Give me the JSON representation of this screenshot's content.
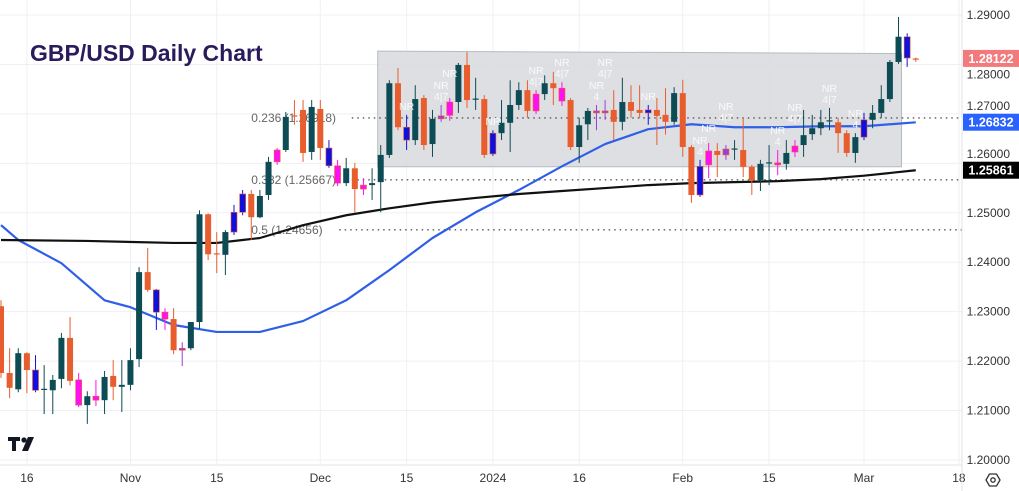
{
  "chart_data": {
    "type": "candlestick",
    "title": "GBP/USD Daily Chart",
    "ylim": [
      1.2,
      1.29
    ],
    "grid": true,
    "y_ticks": [
      "1.20000",
      "1.21000",
      "1.22000",
      "1.23000",
      "1.24000",
      "1.25000",
      "1.26000",
      "1.27000",
      "1.28000",
      "1.29000"
    ],
    "x_ticks": [
      {
        "label": "16",
        "date": "2023-10-16"
      },
      {
        "label": "Nov",
        "date": "2023-11-01"
      },
      {
        "label": "15",
        "date": "2023-11-15"
      },
      {
        "label": "Dec",
        "date": "2023-12-01"
      },
      {
        "label": "15",
        "date": "2023-12-15"
      },
      {
        "label": "2024",
        "date": "2024-01-02"
      },
      {
        "label": "16",
        "date": "2024-01-16"
      },
      {
        "label": "Feb",
        "date": "2024-02-01"
      },
      {
        "label": "15",
        "date": "2024-02-15"
      },
      {
        "label": "Mar",
        "date": "2024-03-01"
      },
      {
        "label": "18",
        "date": "2024-03-18"
      }
    ],
    "candle_colors": {
      "up": "#0d4b55",
      "down": "#e85d2e",
      "blue": "#1010dc",
      "magenta": "#ff10f0",
      "purple": "#9a3fd6"
    },
    "candles": [
      [
        "2023-10-11",
        1.2311,
        1.2323,
        1.2166,
        1.2176,
        "down"
      ],
      [
        "2023-10-12",
        1.2176,
        1.2226,
        1.2125,
        1.2146,
        "down"
      ],
      [
        "2023-10-13",
        1.2143,
        1.2226,
        1.2137,
        1.2216,
        "up"
      ],
      [
        "2023-10-16",
        1.2216,
        1.2218,
        1.2135,
        1.2182,
        "down"
      ],
      [
        "2023-10-17",
        1.2182,
        1.2212,
        1.2137,
        1.2141,
        "blue"
      ],
      [
        "2023-10-18",
        1.2143,
        1.2192,
        1.2093,
        1.2144,
        "up"
      ],
      [
        "2023-10-19",
        1.2141,
        1.2172,
        1.2093,
        1.2162,
        "up"
      ],
      [
        "2023-10-20",
        1.2164,
        1.2257,
        1.2145,
        1.2247,
        "up"
      ],
      [
        "2023-10-23",
        1.2247,
        1.2289,
        1.2151,
        1.216,
        "down"
      ],
      [
        "2023-10-24",
        1.2162,
        1.2176,
        1.2107,
        1.2111,
        "magenta"
      ],
      [
        "2023-10-25",
        1.2111,
        1.2139,
        1.2073,
        1.2129,
        "up"
      ],
      [
        "2023-10-26",
        1.2129,
        1.2162,
        1.2109,
        1.2121,
        "magenta"
      ],
      [
        "2023-10-27",
        1.2121,
        1.218,
        1.2093,
        1.2168,
        "up"
      ],
      [
        "2023-10-30",
        1.217,
        1.2202,
        1.2121,
        1.2148,
        "down"
      ],
      [
        "2023-10-31",
        1.2148,
        1.2202,
        1.2097,
        1.2152,
        "up"
      ],
      [
        "2023-11-01",
        1.2152,
        1.2226,
        1.2141,
        1.2202,
        "up"
      ],
      [
        "2023-11-02",
        1.2204,
        1.239,
        1.2188,
        1.238,
        "up"
      ],
      [
        "2023-11-03",
        1.238,
        1.2429,
        1.234,
        1.2344,
        "down"
      ],
      [
        "2023-11-06",
        1.2344,
        1.2346,
        1.2263,
        1.2299,
        "blue"
      ],
      [
        "2023-11-07",
        1.2299,
        1.2307,
        1.2263,
        1.2285,
        "magenta"
      ],
      [
        "2023-11-08",
        1.2285,
        1.2307,
        1.2214,
        1.2222,
        "down"
      ],
      [
        "2023-11-09",
        1.2226,
        1.2238,
        1.219,
        1.2222,
        "purple"
      ],
      [
        "2023-11-10",
        1.2226,
        1.2279,
        1.2222,
        1.2279,
        "up"
      ],
      [
        "2023-11-13",
        1.2279,
        1.2505,
        1.2265,
        1.2497,
        "up"
      ],
      [
        "2023-11-14",
        1.2497,
        1.2499,
        1.2404,
        1.2416,
        "down"
      ],
      [
        "2023-11-15",
        1.2418,
        1.2461,
        1.2378,
        1.2417,
        "down"
      ],
      [
        "2023-11-16",
        1.2415,
        1.2465,
        1.2374,
        1.2461,
        "up"
      ],
      [
        "2023-11-17",
        1.2461,
        1.2516,
        1.2455,
        1.2501,
        "blue"
      ],
      [
        "2023-11-20",
        1.2501,
        1.2546,
        1.2495,
        1.2538,
        "blue"
      ],
      [
        "2023-11-21",
        1.2538,
        1.2546,
        1.2445,
        1.2491,
        "down"
      ],
      [
        "2023-11-22",
        1.2491,
        1.2546,
        1.2489,
        1.2534,
        "up"
      ],
      [
        "2023-11-23",
        1.2536,
        1.2613,
        1.2526,
        1.2603,
        "up"
      ],
      [
        "2023-11-24",
        1.2603,
        1.2631,
        1.2597,
        1.2627,
        "magenta"
      ],
      [
        "2023-11-27",
        1.2627,
        1.2704,
        1.2623,
        1.2694,
        "up"
      ],
      [
        "2023-11-28",
        1.2695,
        1.2728,
        1.2678,
        1.2697,
        "down"
      ],
      [
        "2023-11-29",
        1.2708,
        1.2728,
        1.2603,
        1.2621,
        "down"
      ],
      [
        "2023-11-30",
        1.2623,
        1.2728,
        1.2607,
        1.2714,
        "up"
      ],
      [
        "2023-12-01",
        1.271,
        1.2728,
        1.2607,
        1.2631,
        "down"
      ],
      [
        "2023-12-04",
        1.2631,
        1.2647,
        1.2591,
        1.2595,
        "blue"
      ],
      [
        "2023-12-05",
        1.2595,
        1.2607,
        1.2554,
        1.256,
        "magenta"
      ],
      [
        "2023-12-06",
        1.256,
        1.2611,
        1.2554,
        1.259,
        "up"
      ],
      [
        "2023-12-07",
        1.259,
        1.2601,
        1.2501,
        1.2548,
        "down"
      ],
      [
        "2023-12-08",
        1.2556,
        1.257,
        1.2536,
        1.2548,
        "magenta"
      ],
      [
        "2023-12-11",
        1.2556,
        1.259,
        1.2526,
        1.256,
        "up"
      ],
      [
        "2023-12-12",
        1.2562,
        1.2637,
        1.2501,
        1.2617,
        "up"
      ],
      [
        "2023-12-13",
        1.2617,
        1.2768,
        1.2611,
        1.2762,
        "up"
      ],
      [
        "2023-12-14",
        1.2762,
        1.2793,
        1.2667,
        1.2673,
        "down"
      ],
      [
        "2023-12-15",
        1.2673,
        1.2698,
        1.2627,
        1.2647,
        "blue"
      ],
      [
        "2023-12-18",
        1.2647,
        1.2758,
        1.2637,
        1.273,
        "up"
      ],
      [
        "2023-12-19",
        1.2732,
        1.2738,
        1.2627,
        1.2637,
        "down"
      ],
      [
        "2023-12-20",
        1.2639,
        1.2708,
        1.2613,
        1.269,
        "up"
      ],
      [
        "2023-12-21",
        1.269,
        1.2718,
        1.2684,
        1.2696,
        "purple"
      ],
      [
        "2023-12-22",
        1.2697,
        1.2732,
        1.2686,
        1.2724,
        "magenta"
      ],
      [
        "2023-12-26",
        1.2724,
        1.2803,
        1.2702,
        1.2799,
        "up"
      ],
      [
        "2023-12-27",
        1.2799,
        1.2825,
        1.2712,
        1.2728,
        "down"
      ],
      [
        "2023-12-28",
        1.273,
        1.2773,
        1.2708,
        1.2731,
        "up"
      ],
      [
        "2023-12-29",
        1.273,
        1.2738,
        1.2611,
        1.2617,
        "down"
      ],
      [
        "2024-01-02",
        1.2619,
        1.2667,
        1.2615,
        1.2661,
        "blue"
      ],
      [
        "2024-01-03",
        1.2661,
        1.2728,
        1.2647,
        1.2682,
        "up"
      ],
      [
        "2024-01-04",
        1.2682,
        1.2768,
        1.2623,
        1.2718,
        "up"
      ],
      [
        "2024-01-05",
        1.2718,
        1.2764,
        1.2708,
        1.2748,
        "up"
      ],
      [
        "2024-01-08",
        1.2748,
        1.2768,
        1.2692,
        1.2706,
        "down"
      ],
      [
        "2024-01-09",
        1.2706,
        1.2748,
        1.27,
        1.274,
        "magenta"
      ],
      [
        "2024-01-10",
        1.274,
        1.2778,
        1.2728,
        1.2762,
        "up"
      ],
      [
        "2024-01-11",
        1.2762,
        1.2785,
        1.2718,
        1.2752,
        "down"
      ],
      [
        "2024-01-12",
        1.2752,
        1.2764,
        1.2716,
        1.2726,
        "magenta"
      ],
      [
        "2024-01-15",
        1.2728,
        1.2732,
        1.2627,
        1.2633,
        "down"
      ],
      [
        "2024-01-16",
        1.2633,
        1.2692,
        1.2601,
        1.2677,
        "up"
      ],
      [
        "2024-01-17",
        1.2679,
        1.2712,
        1.2647,
        1.2706,
        "up"
      ],
      [
        "2024-01-18",
        1.2706,
        1.2718,
        1.2667,
        1.2702,
        "purple"
      ],
      [
        "2024-01-19",
        1.2702,
        1.2728,
        1.2688,
        1.2706,
        "purple"
      ],
      [
        "2024-01-22",
        1.2708,
        1.2748,
        1.2647,
        1.2684,
        "down"
      ],
      [
        "2024-01-23",
        1.2684,
        1.2773,
        1.2667,
        1.2724,
        "up"
      ],
      [
        "2024-01-24",
        1.2724,
        1.2758,
        1.2692,
        1.2706,
        "down"
      ],
      [
        "2024-01-25",
        1.2708,
        1.2758,
        1.2692,
        1.2702,
        "down"
      ],
      [
        "2024-01-26",
        1.2708,
        1.2718,
        1.2678,
        1.2702,
        "blue"
      ],
      [
        "2024-01-29",
        1.2708,
        1.2732,
        1.2637,
        1.2696,
        "down"
      ],
      [
        "2024-01-30",
        1.2698,
        1.2752,
        1.2658,
        1.2684,
        "down"
      ],
      [
        "2024-01-31",
        1.2684,
        1.2754,
        1.2678,
        1.2742,
        "up"
      ],
      [
        "2024-02-01",
        1.2742,
        1.2769,
        1.2613,
        1.2633,
        "down"
      ],
      [
        "2024-02-02",
        1.2633,
        1.2637,
        1.252,
        1.2536,
        "down"
      ],
      [
        "2024-02-05",
        1.2536,
        1.2607,
        1.2532,
        1.2594,
        "blue"
      ],
      [
        "2024-02-06",
        1.2597,
        1.2641,
        1.257,
        1.2625,
        "magenta"
      ],
      [
        "2024-02-07",
        1.2625,
        1.2641,
        1.2572,
        1.2617,
        "down"
      ],
      [
        "2024-02-08",
        1.2617,
        1.2637,
        1.2607,
        1.2629,
        "purple"
      ],
      [
        "2024-02-09",
        1.2629,
        1.2647,
        1.2607,
        1.263,
        "up"
      ],
      [
        "2024-02-12",
        1.2627,
        1.2692,
        1.2572,
        1.2593,
        "down"
      ],
      [
        "2024-02-13",
        1.2593,
        1.2597,
        1.2536,
        1.2566,
        "down"
      ],
      [
        "2024-02-14",
        1.2566,
        1.2607,
        1.2544,
        1.2599,
        "up"
      ],
      [
        "2024-02-15",
        1.2601,
        1.2637,
        1.2556,
        1.2602,
        "up"
      ],
      [
        "2024-02-16",
        1.2597,
        1.2627,
        1.2576,
        1.2601,
        "magenta"
      ],
      [
        "2024-02-19",
        1.2599,
        1.2647,
        1.2587,
        1.2621,
        "up"
      ],
      [
        "2024-02-20",
        1.2623,
        1.2647,
        1.2613,
        1.2635,
        "magenta"
      ],
      [
        "2024-02-21",
        1.2637,
        1.2708,
        1.2613,
        1.2657,
        "up"
      ],
      [
        "2024-02-22",
        1.2659,
        1.2698,
        1.2647,
        1.2671,
        "up"
      ],
      [
        "2024-02-23",
        1.2671,
        1.2708,
        1.2657,
        1.2683,
        "up"
      ],
      [
        "2024-02-26",
        1.2685,
        1.2712,
        1.2667,
        1.2687,
        "up"
      ],
      [
        "2024-02-27",
        1.2683,
        1.2692,
        1.2621,
        1.2661,
        "down"
      ],
      [
        "2024-02-28",
        1.2661,
        1.2667,
        1.2613,
        1.2621,
        "down"
      ],
      [
        "2024-02-29",
        1.2621,
        1.2661,
        1.2601,
        1.2653,
        "up"
      ],
      [
        "2024-03-01",
        1.2653,
        1.2702,
        1.2647,
        1.2688,
        "blue"
      ],
      [
        "2024-03-04",
        1.2688,
        1.2718,
        1.2671,
        1.2702,
        "up"
      ],
      [
        "2024-03-05",
        1.2702,
        1.2758,
        1.2692,
        1.273,
        "up"
      ],
      [
        "2024-03-06",
        1.273,
        1.2809,
        1.2724,
        1.2805,
        "up"
      ],
      [
        "2024-03-07",
        1.2805,
        1.2896,
        1.2801,
        1.2856,
        "up"
      ],
      [
        "2024-03-08",
        1.2856,
        1.2863,
        1.2795,
        1.2813,
        "blue"
      ],
      [
        "2024-03-11",
        1.2812,
        1.2814,
        1.2805,
        1.2812,
        "down"
      ]
    ],
    "moving_averages": [
      {
        "color": "#2f5fe6",
        "points": [
          [
            "2023-10-11",
            1.2475
          ],
          [
            "2023-10-13",
            1.2445
          ],
          [
            "2023-10-20",
            1.2398
          ],
          [
            "2023-10-27",
            1.2323
          ],
          [
            "2023-11-01",
            1.2309
          ],
          [
            "2023-11-08",
            1.2273
          ],
          [
            "2023-11-15",
            1.2259
          ],
          [
            "2023-11-22",
            1.2259
          ],
          [
            "2023-11-29",
            1.2281
          ],
          [
            "2023-12-06",
            1.2323
          ],
          [
            "2023-12-13",
            1.2384
          ],
          [
            "2023-12-20",
            1.2449
          ],
          [
            "2023-12-28",
            1.2501
          ],
          [
            "2024-01-05",
            1.2546
          ],
          [
            "2024-01-12",
            1.2594
          ],
          [
            "2024-01-19",
            1.2639
          ],
          [
            "2024-01-26",
            1.2669
          ],
          [
            "2024-02-02",
            1.2679
          ],
          [
            "2024-02-09",
            1.2673
          ],
          [
            "2024-02-16",
            1.2673
          ],
          [
            "2024-02-23",
            1.2675
          ],
          [
            "2024-03-01",
            1.2675
          ],
          [
            "2024-03-11",
            1.2683
          ]
        ]
      },
      {
        "color": "#111111",
        "points": [
          [
            "2023-10-11",
            1.2445
          ],
          [
            "2023-10-25",
            1.2443
          ],
          [
            "2023-11-08",
            1.2439
          ],
          [
            "2023-11-15",
            1.2439
          ],
          [
            "2023-11-20",
            1.2445
          ],
          [
            "2023-11-22",
            1.2449
          ],
          [
            "2023-11-29",
            1.2475
          ],
          [
            "2023-12-06",
            1.2495
          ],
          [
            "2023-12-13",
            1.2509
          ],
          [
            "2023-12-20",
            1.2521
          ],
          [
            "2023-12-28",
            1.253
          ],
          [
            "2024-01-05",
            1.2538
          ],
          [
            "2024-01-12",
            1.2544
          ],
          [
            "2024-01-19",
            1.255
          ],
          [
            "2024-01-26",
            1.2556
          ],
          [
            "2024-02-02",
            1.256
          ],
          [
            "2024-02-09",
            1.2562
          ],
          [
            "2024-02-16",
            1.2564
          ],
          [
            "2024-02-23",
            1.2568
          ],
          [
            "2024-03-01",
            1.2575
          ],
          [
            "2024-03-11",
            1.2586
          ]
        ]
      }
    ],
    "price_labels": [
      {
        "text": "1.28122",
        "value": 1.28122,
        "color": "#f27a7d"
      },
      {
        "text": "1.26832",
        "value": 1.26832,
        "color": "#2962ff"
      },
      {
        "text": "1.25861",
        "value": 1.25861,
        "color": "#000000"
      }
    ],
    "fib_levels": [
      {
        "label": "0.236 (1.26918)",
        "value": 1.26918
      },
      {
        "label": "0.382 (1.25667)",
        "value": 1.25667
      },
      {
        "label": "0.5 (1.24656)",
        "value": 1.24656
      }
    ],
    "range_box": {
      "start": "2023-12-12",
      "end": "2024-03-07",
      "top_start": 1.2827,
      "top_end": 1.2822,
      "bottom": 1.2593,
      "color": "#d8d9de"
    },
    "annotations": [
      {
        "date": "2023-12-15",
        "lines": [
          "NR"
        ]
      },
      {
        "date": "2023-12-21",
        "lines": [
          "NR",
          "4|7"
        ]
      },
      {
        "date": "2023-12-22",
        "lines": [
          "NR"
        ]
      },
      {
        "date": "2024-01-02",
        "lines": [
          "NR"
        ]
      },
      {
        "date": "2024-01-09",
        "lines": [
          "NR",
          "4|7"
        ]
      },
      {
        "date": "2024-01-12",
        "lines": [
          "NR",
          "4|7"
        ]
      },
      {
        "date": "2024-01-18",
        "lines": [
          "NR",
          "4"
        ]
      },
      {
        "date": "2024-01-19",
        "lines": [
          "NR",
          "4|7"
        ]
      },
      {
        "date": "2024-01-26",
        "lines": [
          "NR"
        ]
      },
      {
        "date": "2024-02-05",
        "lines": [
          "NR",
          "4"
        ]
      },
      {
        "date": "2024-02-06",
        "lines": [
          "NR"
        ]
      },
      {
        "date": "2024-02-08",
        "lines": [
          "NR",
          "4|7"
        ]
      },
      {
        "date": "2024-02-16",
        "lines": [
          "NR",
          "4"
        ]
      },
      {
        "date": "2024-02-20",
        "lines": [
          "NR",
          "4|7"
        ]
      },
      {
        "date": "2024-02-26",
        "lines": [
          "NR",
          "4|7"
        ]
      },
      {
        "date": "2024-02-29",
        "lines": [
          "NR",
          "4"
        ]
      }
    ]
  },
  "logo": "TV",
  "icons": {
    "settings": "settings-icon",
    "logo": "tradingview-logo-icon"
  }
}
